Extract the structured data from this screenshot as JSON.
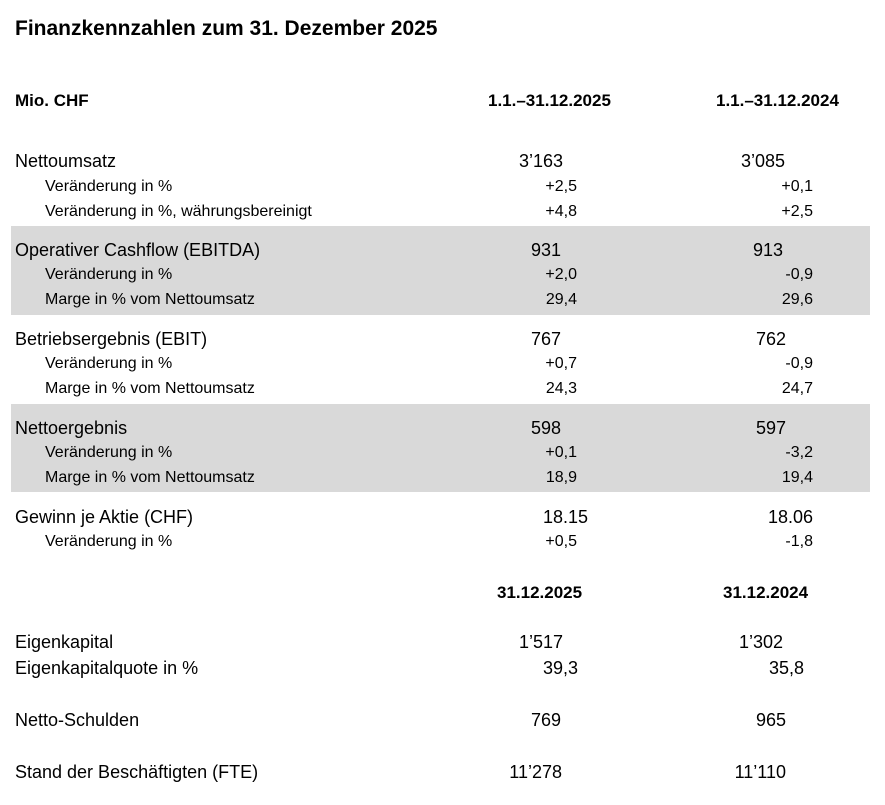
{
  "title": "Finanzkennzahlen zum 31. Dezember 2025",
  "unit_label": "Mio. CHF",
  "period_headers": [
    "1.1.–31.12.2025",
    "1.1.–31.12.2024"
  ],
  "date_headers": [
    "31.12.2025",
    "31.12.2024"
  ],
  "shade_color": "#d9d9d9",
  "sections": [
    {
      "label": "Nettoumsatz",
      "v2025": "3’163",
      "v2024": "3’085",
      "sub": [
        {
          "label": "Veränderung in %",
          "v2025": "+2,5",
          "v2024": "+0,1"
        },
        {
          "label": "Veränderung in %, währungsbereinigt",
          "v2025": "+4,8",
          "v2024": "+2,5"
        }
      ]
    },
    {
      "label": "Operativer Cashflow (EBITDA)",
      "v2025": "931",
      "v2024": "913",
      "sub": [
        {
          "label": "Veränderung in %",
          "v2025": "+2,0",
          "v2024": "-0,9"
        },
        {
          "label": "Marge in % vom Nettoumsatz",
          "v2025": "29,4",
          "v2024": "29,6"
        }
      ]
    },
    {
      "label": "Betriebsergebnis (EBIT)",
      "v2025": "767",
      "v2024": "762",
      "sub": [
        {
          "label": "Veränderung in %",
          "v2025": "+0,7",
          "v2024": "-0,9"
        },
        {
          "label": "Marge in % vom Nettoumsatz",
          "v2025": "24,3",
          "v2024": "24,7"
        }
      ]
    },
    {
      "label": "Nettoergebnis",
      "v2025": "598",
      "v2024": "597",
      "sub": [
        {
          "label": "Veränderung in %",
          "v2025": "+0,1",
          "v2024": "-3,2"
        },
        {
          "label": "Marge in % vom Nettoumsatz",
          "v2025": "18,9",
          "v2024": "19,4"
        }
      ]
    },
    {
      "label": "Gewinn je Aktie (CHF)",
      "v2025": "18.15",
      "v2024": "18.06",
      "sub": [
        {
          "label": "Veränderung in %",
          "v2025": "+0,5",
          "v2024": "-1,8"
        }
      ]
    }
  ],
  "balance": [
    {
      "label": "Eigenkapital",
      "v2025": "1’517",
      "v2024": "1’302"
    },
    {
      "label": "Eigenkapitalquote in %",
      "v2025": "39,3",
      "v2024": "35,8"
    },
    {
      "label": "Netto-Schulden",
      "v2025": "769",
      "v2024": "965"
    },
    {
      "label": "Stand der Beschäftigten (FTE)",
      "v2025": "11’278",
      "v2024": "11’110"
    }
  ]
}
